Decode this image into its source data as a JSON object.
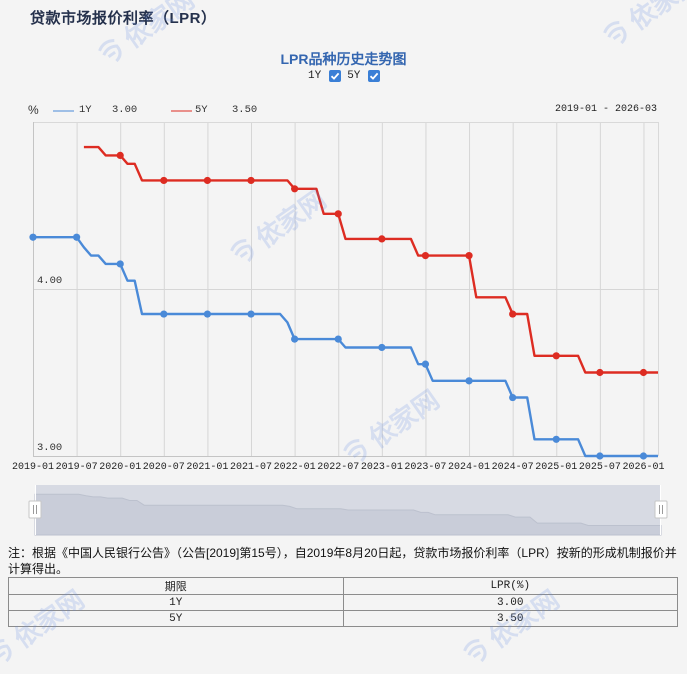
{
  "page": {
    "title": "贷款市场报价利率（LPR）"
  },
  "chart": {
    "title": "LPR品种历史走势图",
    "toggles": [
      {
        "label": "1Y",
        "checked": true
      },
      {
        "label": "5Y",
        "checked": true
      }
    ],
    "unit": "%",
    "legend": [
      {
        "label": "1Y",
        "value": "3.00",
        "color": "#4a8ad8"
      },
      {
        "label": "5Y",
        "value": "3.50",
        "color": "#dd2c22"
      }
    ],
    "date_range": "2019-01 - 2026-03",
    "navigator": {
      "left_handle": "||",
      "right_handle": "||"
    }
  },
  "chart_data": {
    "type": "line",
    "title": "LPR品种历史走势图",
    "xlabel": "",
    "ylabel": "%",
    "ylim": [
      3.0,
      5.0
    ],
    "yticks": [
      4.0,
      3.0
    ],
    "ytick_labels": [
      "4.00",
      "3.00"
    ],
    "grid": true,
    "legend_position": "top-left",
    "x_range": [
      "2019-01",
      "2026-03"
    ],
    "xticks": [
      "2019-01",
      "2019-07",
      "2020-01",
      "2020-07",
      "2021-01",
      "2021-07",
      "2022-01",
      "2022-07",
      "2023-01",
      "2023-07",
      "2024-01",
      "2024-07",
      "2025-01",
      "2025-07",
      "2026-01"
    ],
    "x": [
      "2019-01",
      "2019-02",
      "2019-03",
      "2019-04",
      "2019-05",
      "2019-06",
      "2019-07",
      "2019-08",
      "2019-09",
      "2019-10",
      "2019-11",
      "2019-12",
      "2020-01",
      "2020-02",
      "2020-03",
      "2020-04",
      "2020-05",
      "2020-06",
      "2020-07",
      "2020-08",
      "2020-09",
      "2020-10",
      "2020-11",
      "2020-12",
      "2021-01",
      "2021-02",
      "2021-03",
      "2021-04",
      "2021-05",
      "2021-06",
      "2021-07",
      "2021-08",
      "2021-09",
      "2021-10",
      "2021-11",
      "2021-12",
      "2022-01",
      "2022-02",
      "2022-03",
      "2022-04",
      "2022-05",
      "2022-06",
      "2022-07",
      "2022-08",
      "2022-09",
      "2022-10",
      "2022-11",
      "2022-12",
      "2023-01",
      "2023-02",
      "2023-03",
      "2023-04",
      "2023-05",
      "2023-06",
      "2023-07",
      "2023-08",
      "2023-09",
      "2023-10",
      "2023-11",
      "2023-12",
      "2024-01",
      "2024-02",
      "2024-03",
      "2024-04",
      "2024-05",
      "2024-06",
      "2024-07",
      "2024-08",
      "2024-09",
      "2024-10",
      "2024-11",
      "2024-12",
      "2025-01",
      "2025-02",
      "2025-03",
      "2025-04",
      "2025-05",
      "2025-06",
      "2025-07",
      "2025-08",
      "2025-09",
      "2025-10",
      "2025-11",
      "2025-12",
      "2026-01",
      "2026-02",
      "2026-03"
    ],
    "series": [
      {
        "name": "1Y",
        "color": "#4a8ad8",
        "latest": 3.0,
        "values": [
          4.31,
          4.31,
          4.31,
          4.31,
          4.31,
          4.31,
          4.31,
          4.25,
          4.2,
          4.2,
          4.15,
          4.15,
          4.15,
          4.05,
          4.05,
          3.85,
          3.85,
          3.85,
          3.85,
          3.85,
          3.85,
          3.85,
          3.85,
          3.85,
          3.85,
          3.85,
          3.85,
          3.85,
          3.85,
          3.85,
          3.85,
          3.85,
          3.85,
          3.85,
          3.85,
          3.8,
          3.7,
          3.7,
          3.7,
          3.7,
          3.7,
          3.7,
          3.7,
          3.65,
          3.65,
          3.65,
          3.65,
          3.65,
          3.65,
          3.65,
          3.65,
          3.65,
          3.65,
          3.55,
          3.55,
          3.45,
          3.45,
          3.45,
          3.45,
          3.45,
          3.45,
          3.45,
          3.45,
          3.45,
          3.45,
          3.45,
          3.35,
          3.35,
          3.35,
          3.1,
          3.1,
          3.1,
          3.1,
          3.1,
          3.1,
          3.1,
          3.0,
          3.0,
          3.0,
          3.0,
          3.0,
          3.0,
          3.0,
          3.0,
          3.0,
          3.0,
          3.0
        ]
      },
      {
        "name": "5Y",
        "color": "#dd2c22",
        "latest": 3.5,
        "values": [
          null,
          null,
          null,
          null,
          null,
          null,
          null,
          4.85,
          4.85,
          4.85,
          4.8,
          4.8,
          4.8,
          4.75,
          4.75,
          4.65,
          4.65,
          4.65,
          4.65,
          4.65,
          4.65,
          4.65,
          4.65,
          4.65,
          4.65,
          4.65,
          4.65,
          4.65,
          4.65,
          4.65,
          4.65,
          4.65,
          4.65,
          4.65,
          4.65,
          4.65,
          4.6,
          4.6,
          4.6,
          4.6,
          4.45,
          4.45,
          4.45,
          4.3,
          4.3,
          4.3,
          4.3,
          4.3,
          4.3,
          4.3,
          4.3,
          4.3,
          4.3,
          4.2,
          4.2,
          4.2,
          4.2,
          4.2,
          4.2,
          4.2,
          4.2,
          3.95,
          3.95,
          3.95,
          3.95,
          3.95,
          3.85,
          3.85,
          3.85,
          3.6,
          3.6,
          3.6,
          3.6,
          3.6,
          3.6,
          3.6,
          3.5,
          3.5,
          3.5,
          3.5,
          3.5,
          3.5,
          3.5,
          3.5,
          3.5,
          3.5,
          3.5
        ]
      }
    ]
  },
  "note": "注：根据《中国人民银行公告》（公告[2019]第15号），自2019年8月20日起，贷款市场报价利率（LPR）按新的形成机制报价并计算得出。",
  "table": {
    "headers": [
      "期限",
      "LPR(%)"
    ],
    "rows": [
      [
        "1Y",
        "3.00"
      ],
      [
        "5Y",
        "3.50"
      ]
    ]
  },
  "watermark": {
    "text": "依家网"
  }
}
